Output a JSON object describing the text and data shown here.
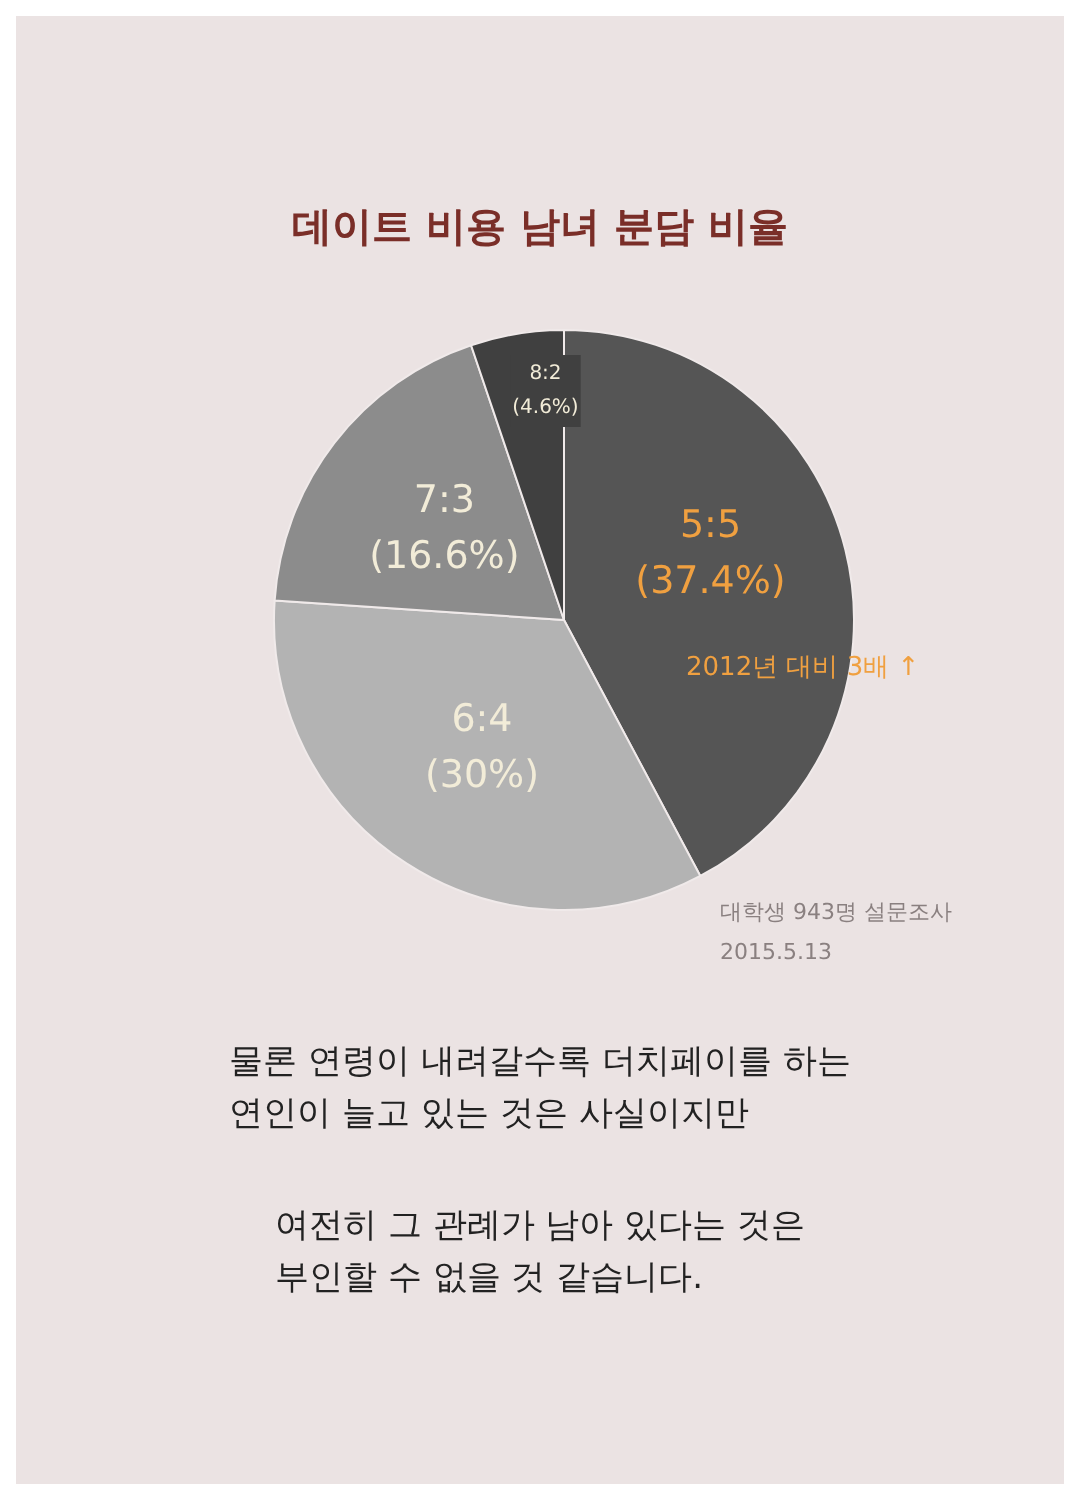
{
  "chart_data": {
    "type": "pie",
    "title": "데이트 비용 남녀 분담 비율",
    "categories": [
      "5:5",
      "6:4",
      "7:3",
      "8:2"
    ],
    "values": [
      37.4,
      30,
      16.6,
      4.6
    ],
    "value_labels": [
      "(37.4%)",
      "(30%)",
      "(16.6%)",
      "(4.6%)"
    ],
    "colors": [
      "#555555",
      "#b3b3b3",
      "#8c8c8c",
      "#404040"
    ],
    "legend": false,
    "annotations": [
      "2012년 대비 3배 ↑",
      "대학생 943명 설문조사\n2015.5.13",
      "물론 연령이 내려갈수록 더치페이를 하는\n연인이 늘고 있는 것은 사실이지만",
      "여전히 그 관례가 남아 있다는 것은\n부인할 수 없을 것 같습니다."
    ]
  }
}
